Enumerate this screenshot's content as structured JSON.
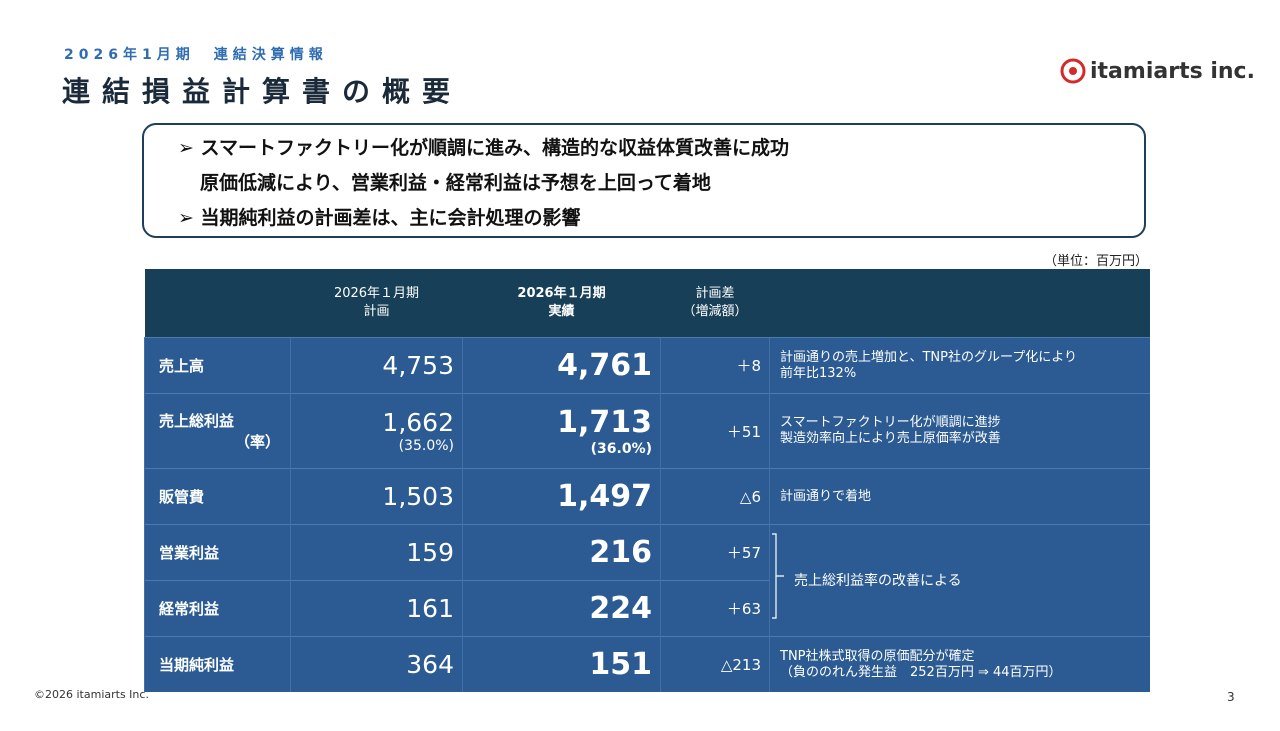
{
  "header": {
    "subtitle": "2026年1月期　連結決算情報",
    "title": "連結損益計算書の概要",
    "logo": "itamiarts inc."
  },
  "summary": {
    "bullets": [
      [
        "スマートファクトリー化が順調に進み、構造的な収益体質改善に成功",
        "原価低減により、営業利益・経常利益は予想を上回って着地"
      ],
      [
        "当期純利益の計画差は、主に会計処理の影響"
      ]
    ]
  },
  "table": {
    "unit": "（単位：百万円）",
    "columns": [
      [
        "2026年１月期",
        "計画"
      ],
      [
        "2026年１月期",
        "実績"
      ],
      [
        "計画差",
        "（増減額）"
      ]
    ],
    "rows": [
      {
        "item": [
          "売上高"
        ],
        "plan": [
          "4,753"
        ],
        "actual": [
          "4,761"
        ],
        "diff": "＋8",
        "comment": [
          "計画通りの売上増加と、TNP社のグループ化により",
          "前年比132%"
        ]
      },
      {
        "item": [
          "売上総利益",
          "（率）"
        ],
        "plan": [
          "1,662",
          "(35.0%)"
        ],
        "actual": [
          "1,713",
          "(36.0%)"
        ],
        "diff": "＋51",
        "comment": [
          "スマートファクトリー化が順調に進捗",
          "製造効率向上により売上原価率が改善"
        ]
      },
      {
        "item": [
          "販管費"
        ],
        "plan": [
          "1,503"
        ],
        "actual": [
          "1,497"
        ],
        "diff": "△6",
        "comment": [
          "計画通りで着地"
        ]
      },
      {
        "item": [
          "営業利益"
        ],
        "plan": [
          "159"
        ],
        "actual": [
          "216"
        ],
        "diff": "＋57",
        "comment": [
          "売上総利益率の改善による"
        ]
      },
      {
        "item": [
          "経常利益"
        ],
        "plan": [
          "161"
        ],
        "actual": [
          "224"
        ],
        "diff": "＋63"
      },
      {
        "item": [
          "当期純利益"
        ],
        "plan": [
          "364"
        ],
        "actual": [
          "151"
        ],
        "diff": "△213",
        "comment": [
          "TNP社株式取得の原価配分が確定",
          "（負ののれん発生益　252百万円 ⇒ 44百万円）"
        ]
      }
    ]
  },
  "footer": {
    "copyright": "©2026 itamiarts Inc.",
    "page": "3"
  }
}
